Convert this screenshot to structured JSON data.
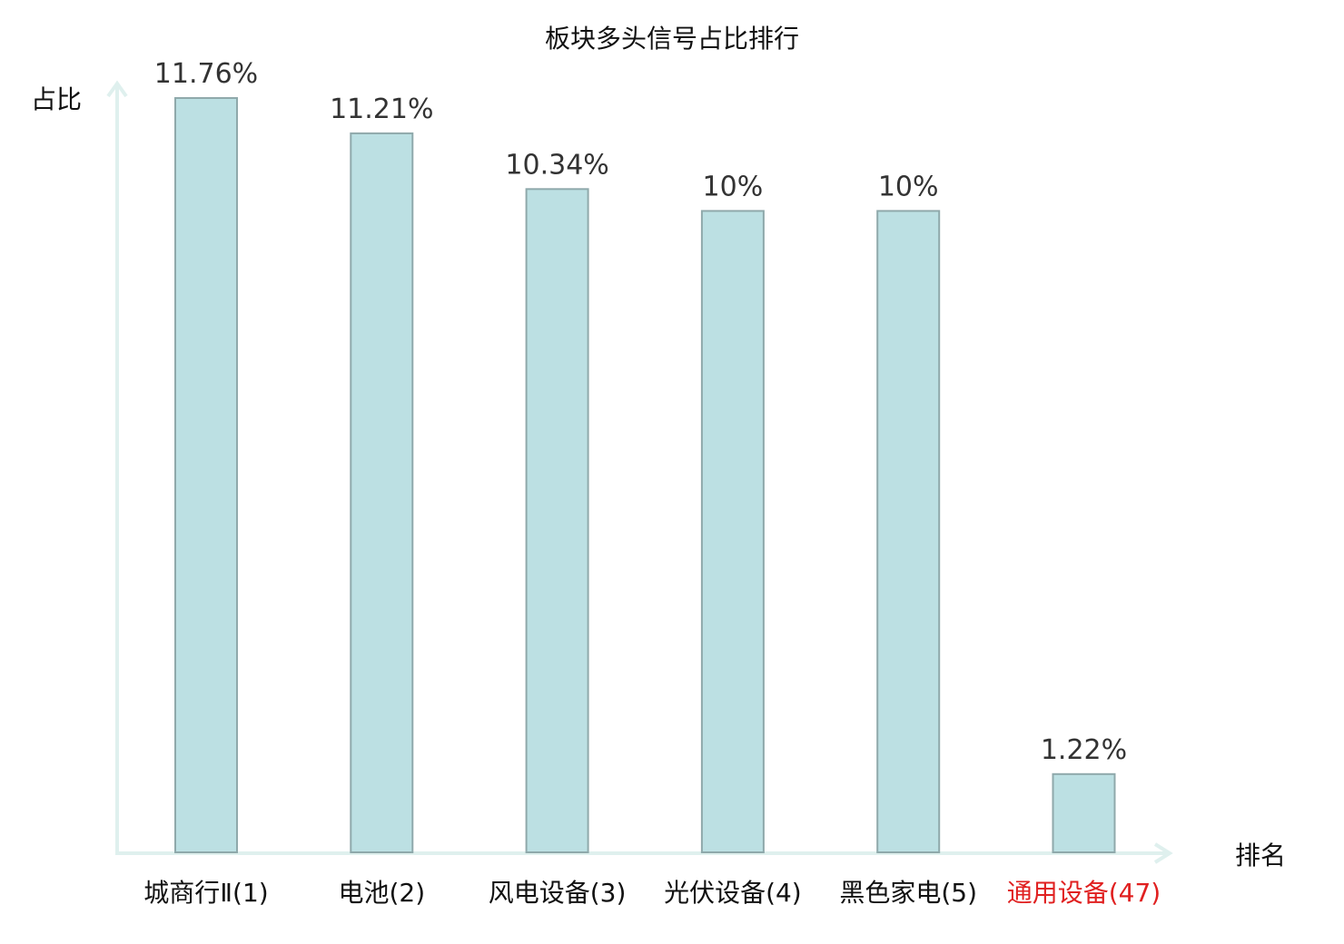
{
  "chart_data": {
    "type": "bar",
    "title": "板块多头信号占比排行",
    "ylabel": "占比",
    "xlabel": "排名",
    "ylim": [
      0,
      12
    ],
    "grid": false,
    "categories": [
      "城商行Ⅱ(1)",
      "电池(2)",
      "风电设备(3)",
      "光伏设备(4)",
      "黑色家电(5)",
      "通用设备(47)"
    ],
    "values": [
      11.76,
      11.21,
      10.34,
      10,
      10,
      1.22
    ],
    "value_labels": [
      "11.76%",
      "11.21%",
      "10.34%",
      "10%",
      "10%",
      "1.22%"
    ],
    "highlight_index": 5
  },
  "colors": {
    "bar_fill": "#bce0e3",
    "bar_stroke": "#8fa9ab",
    "axis": "#dff0ee",
    "highlight_text": "#e02020",
    "value_text": "#333333",
    "text": "#111111"
  }
}
